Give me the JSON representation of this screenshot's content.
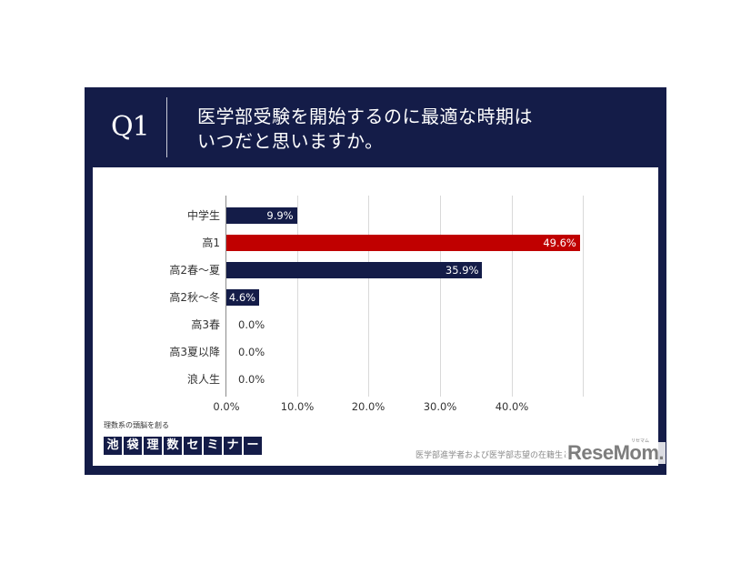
{
  "header": {
    "question_number": "Q1",
    "title_line1": "医学部受験を開始するのに最適な時期は",
    "title_line2": "いつだと思いますか。"
  },
  "chart_data": {
    "type": "bar",
    "orientation": "horizontal",
    "title": "医学部受験を開始するのに最適な時期はいつだと思いますか。",
    "categories": [
      "中学生",
      "高1",
      "高2春〜夏",
      "高2秋〜冬",
      "高3春",
      "高3夏以降",
      "浪人生"
    ],
    "values": [
      9.9,
      49.6,
      35.9,
      4.6,
      0.0,
      0.0,
      0.0
    ],
    "value_labels": [
      "9.9%",
      "49.6%",
      "35.9%",
      "4.6%",
      "0.0%",
      "0.0%",
      "0.0%"
    ],
    "bar_colors": [
      "#141c48",
      "#c00000",
      "#141c48",
      "#141c48",
      "#141c48",
      "#141c48",
      "#141c48"
    ],
    "highlight_category": "高1",
    "x_ticks": [
      "0.0%",
      "10.0%",
      "20.0%",
      "30.0%",
      "40.0%"
    ],
    "xlim": [
      0,
      50
    ],
    "xlabel": "",
    "ylabel": "",
    "grid": true,
    "legend": null
  },
  "branding": {
    "tagline": "理数系の頭脳を創る",
    "name_chars": [
      "池",
      "袋",
      "理",
      "数",
      "セ",
      "ミ",
      "ナ",
      "ー"
    ]
  },
  "footnote": "医学部進学者および医学部志望の在籍生と保",
  "watermark": {
    "logo": "ReseMom.",
    "ruby": "リセマム"
  },
  "colors": {
    "navy": "#141c48",
    "accent_red": "#c00000",
    "grid": "#d9d9d9"
  }
}
